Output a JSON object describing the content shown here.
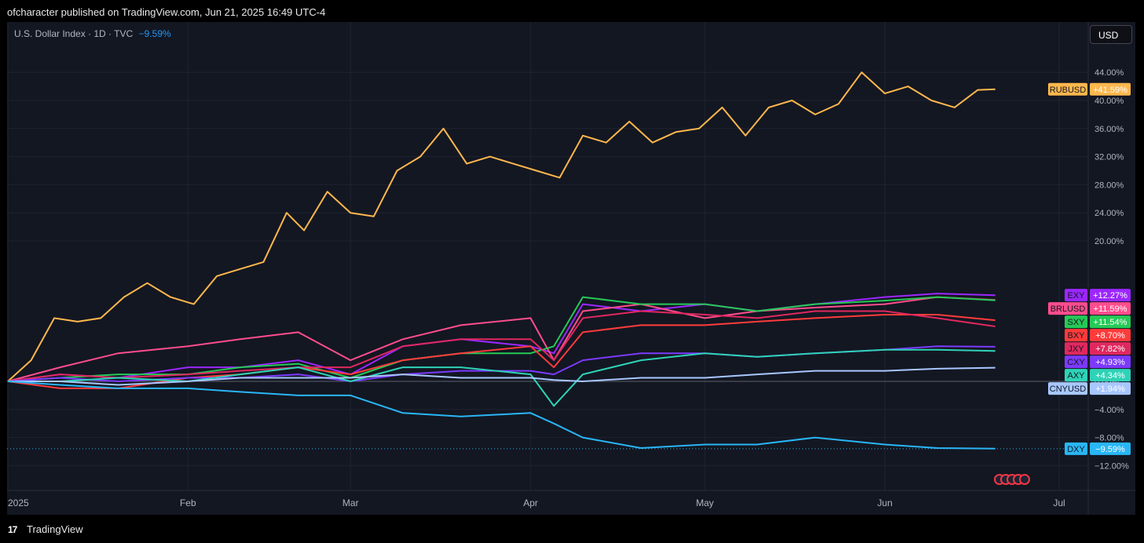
{
  "header": {
    "published": "ofcharacter published on TradingView.com, Jun 21, 2025 16:49 UTC-4"
  },
  "legend": {
    "symbol": "U.S. Dollar Index · 1D · TVC",
    "change": "−9.59%"
  },
  "currency_button": "USD",
  "footer": {
    "brand": "TradingView",
    "logo": "tv-logo"
  },
  "chart_data": {
    "type": "line",
    "x_labels": [
      "2025",
      "Feb",
      "Mar",
      "Apr",
      "May",
      "Jun",
      "Jul"
    ],
    "x_label_dates": [
      "2025-01-01",
      "2025-02-01",
      "2025-03-01",
      "2025-04-01",
      "2025-05-01",
      "2025-06-01",
      "2025-07-01"
    ],
    "ylim": [
      -15,
      48
    ],
    "y_ticks": [
      44,
      40,
      36,
      32,
      28,
      24,
      20,
      0,
      -4,
      -8,
      -12
    ],
    "y_tick_labels": [
      "44.00%",
      "40.00%",
      "36.00%",
      "32.00%",
      "28.00%",
      "24.00%",
      "20.00%",
      "0.00%",
      "−4.00%",
      "−8.00%",
      "−12.00%"
    ],
    "y_unit": "%",
    "grid": true,
    "series": [
      {
        "name": "RUBUSD",
        "label": "+41.59%",
        "color": "#ffb74d",
        "x": [
          "2025-01-01",
          "2025-01-05",
          "2025-01-09",
          "2025-01-13",
          "2025-01-17",
          "2025-01-21",
          "2025-01-25",
          "2025-01-29",
          "2025-02-02",
          "2025-02-06",
          "2025-02-10",
          "2025-02-14",
          "2025-02-18",
          "2025-02-21",
          "2025-02-25",
          "2025-03-01",
          "2025-03-05",
          "2025-03-09",
          "2025-03-13",
          "2025-03-17",
          "2025-03-21",
          "2025-03-25",
          "2025-03-29",
          "2025-04-02",
          "2025-04-06",
          "2025-04-10",
          "2025-04-14",
          "2025-04-18",
          "2025-04-22",
          "2025-04-26",
          "2025-04-30",
          "2025-05-04",
          "2025-05-08",
          "2025-05-12",
          "2025-05-16",
          "2025-05-20",
          "2025-05-24",
          "2025-05-28",
          "2025-06-01",
          "2025-06-05",
          "2025-06-09",
          "2025-06-13",
          "2025-06-17",
          "2025-06-20"
        ],
        "y": [
          0,
          3,
          9,
          8.5,
          9,
          12,
          14,
          12,
          11,
          15,
          16,
          17,
          24,
          21.5,
          27,
          24,
          23.5,
          30,
          32,
          36,
          31,
          32,
          31,
          30,
          29,
          35,
          34,
          37,
          34,
          35.5,
          36,
          39,
          35,
          39,
          40,
          38,
          39.5,
          44,
          41,
          42,
          40,
          39,
          41.5,
          41.59
        ]
      },
      {
        "name": "EXY",
        "label": "+12.27%",
        "color": "#9c27ff",
        "x": [
          "2025-01-01",
          "2025-01-10",
          "2025-01-20",
          "2025-02-01",
          "2025-02-10",
          "2025-02-20",
          "2025-03-01",
          "2025-03-10",
          "2025-03-20",
          "2025-04-01",
          "2025-04-05",
          "2025-04-10",
          "2025-04-20",
          "2025-05-01",
          "2025-05-10",
          "2025-05-20",
          "2025-06-01",
          "2025-06-10",
          "2025-06-20"
        ],
        "y": [
          0,
          1,
          0.5,
          2,
          2,
          3,
          1,
          5,
          6,
          5,
          4,
          11,
          10,
          11,
          10,
          11,
          12,
          12.5,
          12.27
        ]
      },
      {
        "name": "BRLUSD",
        "label": "+11.59%",
        "color": "#ff4d8d",
        "x": [
          "2025-01-01",
          "2025-01-10",
          "2025-01-20",
          "2025-02-01",
          "2025-02-10",
          "2025-02-20",
          "2025-03-01",
          "2025-03-10",
          "2025-03-20",
          "2025-04-01",
          "2025-04-05",
          "2025-04-10",
          "2025-04-20",
          "2025-05-01",
          "2025-05-10",
          "2025-05-20",
          "2025-06-01",
          "2025-06-10",
          "2025-06-20"
        ],
        "y": [
          0,
          2,
          4,
          5,
          6,
          7,
          3,
          6,
          8,
          9,
          3,
          10,
          11,
          9,
          10,
          10.5,
          11,
          12,
          11.59
        ]
      },
      {
        "name": "SXY",
        "label": "+11.54%",
        "color": "#26c957",
        "x": [
          "2025-01-01",
          "2025-01-10",
          "2025-01-20",
          "2025-02-01",
          "2025-02-10",
          "2025-02-20",
          "2025-03-01",
          "2025-03-10",
          "2025-03-20",
          "2025-04-01",
          "2025-04-05",
          "2025-04-10",
          "2025-04-20",
          "2025-05-01",
          "2025-05-10",
          "2025-05-20",
          "2025-06-01",
          "2025-06-10",
          "2025-06-20"
        ],
        "y": [
          0,
          0.5,
          1,
          1,
          2,
          2.5,
          0.5,
          3,
          4,
          4,
          5,
          12,
          11,
          11,
          10,
          11,
          11.5,
          12,
          11.54
        ]
      },
      {
        "name": "BXY",
        "label": "+8.70%",
        "color": "#ff3b3b",
        "x": [
          "2025-01-01",
          "2025-01-10",
          "2025-01-20",
          "2025-02-01",
          "2025-02-10",
          "2025-02-20",
          "2025-03-01",
          "2025-03-10",
          "2025-03-20",
          "2025-04-01",
          "2025-04-05",
          "2025-04-10",
          "2025-04-20",
          "2025-05-01",
          "2025-05-10",
          "2025-05-20",
          "2025-06-01",
          "2025-06-10",
          "2025-06-20"
        ],
        "y": [
          0,
          -1,
          -1,
          0.5,
          1,
          2,
          1,
          3,
          4,
          5,
          2,
          7,
          8,
          8,
          8.5,
          9,
          9.5,
          9.5,
          8.7
        ]
      },
      {
        "name": "JXY",
        "label": "+7.82%",
        "color": "#e0285f",
        "x": [
          "2025-01-01",
          "2025-01-10",
          "2025-01-20",
          "2025-02-01",
          "2025-02-10",
          "2025-02-20",
          "2025-03-01",
          "2025-03-10",
          "2025-03-20",
          "2025-04-01",
          "2025-04-05",
          "2025-04-10",
          "2025-04-20",
          "2025-05-01",
          "2025-05-10",
          "2025-05-20",
          "2025-06-01",
          "2025-06-10",
          "2025-06-20"
        ],
        "y": [
          0,
          1,
          0.5,
          1,
          1.5,
          2,
          2,
          5,
          6,
          6,
          3,
          9,
          10,
          9.5,
          9,
          10,
          10,
          9,
          7.82
        ]
      },
      {
        "name": "CXY",
        "label": "+4.93%",
        "color": "#7c3aff",
        "x": [
          "2025-01-01",
          "2025-01-10",
          "2025-01-20",
          "2025-02-01",
          "2025-02-10",
          "2025-02-20",
          "2025-03-01",
          "2025-03-10",
          "2025-03-20",
          "2025-04-01",
          "2025-04-05",
          "2025-04-10",
          "2025-04-20",
          "2025-05-01",
          "2025-05-10",
          "2025-05-20",
          "2025-06-01",
          "2025-06-10",
          "2025-06-20"
        ],
        "y": [
          0,
          0.5,
          0,
          0.5,
          0.5,
          1,
          0,
          1,
          1.5,
          1.5,
          1,
          3,
          4,
          4,
          3.5,
          4,
          4.5,
          5,
          4.93
        ]
      },
      {
        "name": "AXY",
        "label": "+4.34%",
        "color": "#2ed3b7",
        "x": [
          "2025-01-01",
          "2025-01-10",
          "2025-01-20",
          "2025-02-01",
          "2025-02-10",
          "2025-02-20",
          "2025-03-01",
          "2025-03-10",
          "2025-03-20",
          "2025-04-01",
          "2025-04-05",
          "2025-04-10",
          "2025-04-20",
          "2025-05-01",
          "2025-05-10",
          "2025-05-20",
          "2025-06-01",
          "2025-06-10",
          "2025-06-20"
        ],
        "y": [
          0,
          0,
          0.5,
          0,
          1,
          2,
          0,
          2,
          2,
          1,
          -3.5,
          1,
          3,
          4,
          3.5,
          4,
          4.5,
          4.5,
          4.34
        ]
      },
      {
        "name": "CNYUSD",
        "label": "+1.94%",
        "color": "#a8c7ff",
        "x": [
          "2025-01-01",
          "2025-01-10",
          "2025-01-20",
          "2025-02-01",
          "2025-02-10",
          "2025-02-20",
          "2025-03-01",
          "2025-03-10",
          "2025-03-20",
          "2025-04-01",
          "2025-04-05",
          "2025-04-10",
          "2025-04-20",
          "2025-05-01",
          "2025-05-10",
          "2025-05-20",
          "2025-06-01",
          "2025-06-10",
          "2025-06-20"
        ],
        "y": [
          0,
          0,
          -0.5,
          0,
          0.5,
          0.5,
          0.5,
          1,
          0.5,
          0.5,
          0.2,
          0,
          0.5,
          0.5,
          1,
          1.5,
          1.5,
          1.8,
          1.94
        ]
      },
      {
        "name": "DXY",
        "label": "−9.59%",
        "color": "#29b6f6",
        "x": [
          "2025-01-01",
          "2025-01-10",
          "2025-01-20",
          "2025-02-01",
          "2025-02-10",
          "2025-02-20",
          "2025-03-01",
          "2025-03-10",
          "2025-03-20",
          "2025-04-01",
          "2025-04-05",
          "2025-04-10",
          "2025-04-20",
          "2025-05-01",
          "2025-05-10",
          "2025-05-20",
          "2025-06-01",
          "2025-06-10",
          "2025-06-20"
        ],
        "y": [
          0,
          -0.5,
          -1,
          -1,
          -1.5,
          -2,
          -2,
          -4.5,
          -5,
          -4.5,
          -6,
          -8,
          -9.5,
          -9,
          -9,
          -8,
          -9,
          -9.5,
          -9.59
        ]
      }
    ]
  }
}
